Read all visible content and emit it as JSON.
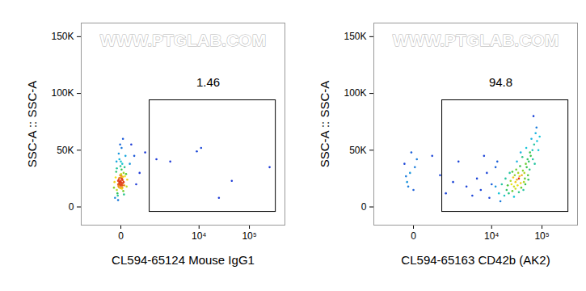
{
  "chart_data": [
    {
      "type": "scatter",
      "log": "x",
      "watermark": "WWW.PTGLAB.COM",
      "xlabel": "CL594-65124 Mouse IgG1",
      "ylabel": "SSC-A :: SSC-A",
      "xlim": [
        -1500,
        500000
      ],
      "ylim": [
        -16000,
        162000
      ],
      "xticks": [
        0,
        {
          "value": 10000,
          "label": "10⁴"
        },
        {
          "value": 100000,
          "label": "10⁵"
        }
      ],
      "yticks": [
        0,
        {
          "value": 50000,
          "label": "50K"
        },
        {
          "value": 100000,
          "label": "100K"
        },
        {
          "value": 150000,
          "label": "150K"
        }
      ],
      "gate": {
        "x": [
          800,
          330000
        ],
        "y": [
          -4300,
          94000
        ],
        "percent": 1.46
      },
      "points": [
        [
          -40,
          20000
        ],
        [
          -20,
          22000
        ],
        [
          0,
          18000
        ],
        [
          10,
          25000
        ],
        [
          -60,
          15000
        ],
        [
          30,
          21000
        ],
        [
          -10,
          28000
        ],
        [
          20,
          17000
        ],
        [
          -30,
          24000
        ],
        [
          50,
          19000
        ],
        [
          -80,
          26000
        ],
        [
          0,
          23000
        ],
        [
          40,
          30000
        ],
        [
          -50,
          12000
        ],
        [
          15,
          16000
        ],
        [
          -25,
          20500
        ],
        [
          5,
          21500
        ],
        [
          -15,
          19500
        ],
        [
          25,
          23500
        ],
        [
          -35,
          18500
        ],
        [
          60,
          27000
        ],
        [
          -70,
          31000
        ],
        [
          10,
          33000
        ],
        [
          -5,
          36000
        ],
        [
          35,
          14000
        ],
        [
          -45,
          10000
        ],
        [
          0,
          40000
        ],
        [
          20,
          38000
        ],
        [
          -20,
          42000
        ],
        [
          70,
          45000
        ],
        [
          -90,
          8000
        ],
        [
          45,
          11000
        ],
        [
          -60,
          34000
        ],
        [
          80,
          29000
        ],
        [
          -100,
          22000
        ],
        [
          100,
          24000
        ],
        [
          -30,
          47000
        ],
        [
          10,
          52000
        ],
        [
          -10,
          55000
        ],
        [
          30,
          60000
        ],
        [
          -40,
          6000
        ],
        [
          55,
          35000
        ],
        [
          -65,
          40000
        ],
        [
          90,
          18000
        ],
        [
          -110,
          17000
        ],
        [
          0,
          26000
        ],
        [
          12,
          20000
        ],
        [
          -12,
          22500
        ],
        [
          22,
          19000
        ],
        [
          -22,
          25500
        ],
        [
          8,
          27500
        ],
        [
          -8,
          16500
        ],
        [
          18,
          24500
        ],
        [
          -18,
          21000
        ],
        [
          3,
          29000
        ],
        [
          28,
          26500
        ],
        [
          -28,
          17500
        ],
        [
          40,
          22000
        ],
        [
          -40,
          23000
        ],
        [
          0,
          19500
        ],
        [
          150,
          38000
        ],
        [
          250,
          45000
        ],
        [
          400,
          30000
        ],
        [
          600,
          48000
        ],
        [
          1200,
          42000
        ],
        [
          2500,
          40000
        ],
        [
          9000,
          49000
        ],
        [
          11000,
          52000
        ],
        [
          25000,
          8000
        ],
        [
          45000,
          23000
        ],
        [
          250000,
          35000
        ],
        [
          180,
          55000
        ],
        [
          300,
          20000
        ]
      ]
    },
    {
      "type": "scatter",
      "log": "x",
      "watermark": "WWW.PTGLAB.COM",
      "xlabel": "CL594-65163 CD42b (AK2)",
      "ylabel": "SSC-A :: SSC-A",
      "xlim": [
        -1500,
        500000
      ],
      "ylim": [
        -16000,
        162000
      ],
      "xticks": [
        0,
        {
          "value": 10000,
          "label": "10⁴"
        },
        {
          "value": 100000,
          "label": "10⁵"
        }
      ],
      "yticks": [
        0,
        {
          "value": 50000,
          "label": "50K"
        },
        {
          "value": 100000,
          "label": "100K"
        },
        {
          "value": 150000,
          "label": "150K"
        }
      ],
      "gate": {
        "x": [
          800,
          330000
        ],
        "y": [
          -4300,
          94000
        ],
        "percent": 94.8
      },
      "points": [
        [
          20000,
          15000
        ],
        [
          25000,
          20000
        ],
        [
          30000,
          22000
        ],
        [
          35000,
          25000
        ],
        [
          28000,
          18000
        ],
        [
          40000,
          28000
        ],
        [
          32000,
          24000
        ],
        [
          22000,
          12000
        ],
        [
          45000,
          30000
        ],
        [
          38000,
          21000
        ],
        [
          27000,
          26000
        ],
        [
          33000,
          19000
        ],
        [
          50000,
          35000
        ],
        [
          42000,
          32000
        ],
        [
          36000,
          27000
        ],
        [
          30000,
          16000
        ],
        [
          24000,
          23000
        ],
        [
          55000,
          40000
        ],
        [
          60000,
          45000
        ],
        [
          48000,
          38000
        ],
        [
          65000,
          50000
        ],
        [
          52000,
          42000
        ],
        [
          70000,
          55000
        ],
        [
          58000,
          48000
        ],
        [
          62000,
          60000
        ],
        [
          75000,
          65000
        ],
        [
          68000,
          80000
        ],
        [
          80000,
          58000
        ],
        [
          46000,
          25000
        ],
        [
          34000,
          30000
        ],
        [
          29000,
          28000
        ],
        [
          26000,
          14000
        ],
        [
          18000,
          10000
        ],
        [
          21000,
          19000
        ],
        [
          39000,
          17000
        ],
        [
          44000,
          22000
        ],
        [
          31000,
          33000
        ],
        [
          37000,
          36000
        ],
        [
          53000,
          28000
        ],
        [
          57000,
          33000
        ],
        [
          19000,
          25000
        ],
        [
          16000,
          20000
        ],
        [
          14000,
          12000
        ],
        [
          12000,
          18000
        ],
        [
          23000,
          30000
        ],
        [
          41000,
          44000
        ],
        [
          49000,
          52000
        ],
        [
          66000,
          42000
        ],
        [
          72000,
          38000
        ],
        [
          85000,
          50000
        ],
        [
          90000,
          62000
        ],
        [
          78000,
          70000
        ],
        [
          35000,
          13000
        ],
        [
          43000,
          15000
        ],
        [
          28000,
          9000
        ],
        [
          32000,
          40000
        ],
        [
          47000,
          20000
        ],
        [
          54000,
          24000
        ],
        [
          26000,
          31000
        ],
        [
          38000,
          48000
        ],
        [
          10000,
          20000
        ],
        [
          8000,
          30000
        ],
        [
          6000,
          15000
        ],
        [
          5000,
          25000
        ],
        [
          3000,
          18000
        ],
        [
          2000,
          40000
        ],
        [
          1500,
          22000
        ],
        [
          1000,
          12000
        ],
        [
          700,
          28000
        ],
        [
          400,
          45000
        ],
        [
          -100,
          22000
        ],
        [
          -50,
          30000
        ],
        [
          0,
          15000
        ],
        [
          -150,
          38000
        ],
        [
          50,
          42000
        ],
        [
          -80,
          18000
        ],
        [
          -120,
          27000
        ],
        [
          20,
          35000
        ],
        [
          -30,
          48000
        ],
        [
          9000,
          8000
        ],
        [
          4000,
          10000
        ],
        [
          12000,
          35000
        ],
        [
          7000,
          45000
        ],
        [
          15000,
          5000
        ],
        [
          13000,
          40000
        ]
      ]
    }
  ]
}
